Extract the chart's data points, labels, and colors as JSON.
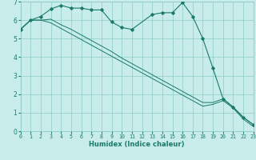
{
  "xlabel": "Humidex (Indice chaleur)",
  "background_color": "#c8ece9",
  "grid_color": "#8ecbc5",
  "line_color": "#1a7a6a",
  "xmin": 0,
  "xmax": 23,
  "ymin": 0,
  "ymax": 7,
  "x_ticks": [
    0,
    1,
    2,
    3,
    4,
    5,
    6,
    7,
    8,
    9,
    10,
    11,
    12,
    13,
    14,
    15,
    16,
    17,
    18,
    19,
    20,
    21,
    22,
    23
  ],
  "y_ticks": [
    0,
    1,
    2,
    3,
    4,
    5,
    6,
    7
  ],
  "series1_x": [
    0,
    1,
    2,
    3,
    4,
    5,
    6,
    7,
    8,
    9,
    10,
    11,
    13,
    14,
    15,
    16,
    17,
    18,
    19,
    20,
    21,
    22,
    23
  ],
  "series1_y": [
    5.5,
    6.0,
    6.2,
    6.6,
    6.8,
    6.65,
    6.65,
    6.55,
    6.55,
    5.9,
    5.6,
    5.5,
    6.3,
    6.4,
    6.4,
    6.95,
    6.2,
    5.0,
    3.4,
    1.75,
    1.3,
    0.75,
    0.35
  ],
  "series2_x": [
    0,
    1,
    2,
    3,
    4,
    5,
    6,
    7,
    8,
    9,
    10,
    11,
    12,
    13,
    14,
    15,
    16,
    17,
    18,
    19,
    20,
    21,
    22,
    23
  ],
  "series2_y": [
    5.5,
    6.0,
    6.0,
    6.05,
    5.75,
    5.5,
    5.2,
    4.9,
    4.6,
    4.3,
    3.95,
    3.65,
    3.35,
    3.05,
    2.75,
    2.45,
    2.15,
    1.85,
    1.55,
    1.55,
    1.75,
    1.3,
    0.75,
    0.35
  ],
  "series3_x": [
    0,
    1,
    2,
    3,
    4,
    5,
    6,
    7,
    8,
    9,
    10,
    11,
    12,
    13,
    14,
    15,
    16,
    17,
    18,
    19,
    20,
    21,
    22,
    23
  ],
  "series3_y": [
    5.5,
    6.0,
    6.0,
    5.85,
    5.55,
    5.25,
    4.95,
    4.65,
    4.35,
    4.05,
    3.75,
    3.45,
    3.15,
    2.85,
    2.55,
    2.25,
    1.95,
    1.65,
    1.35,
    1.45,
    1.65,
    1.25,
    0.65,
    0.25
  ],
  "xlabel_fontsize": 6.0,
  "xtick_fontsize": 4.8,
  "ytick_fontsize": 5.5
}
